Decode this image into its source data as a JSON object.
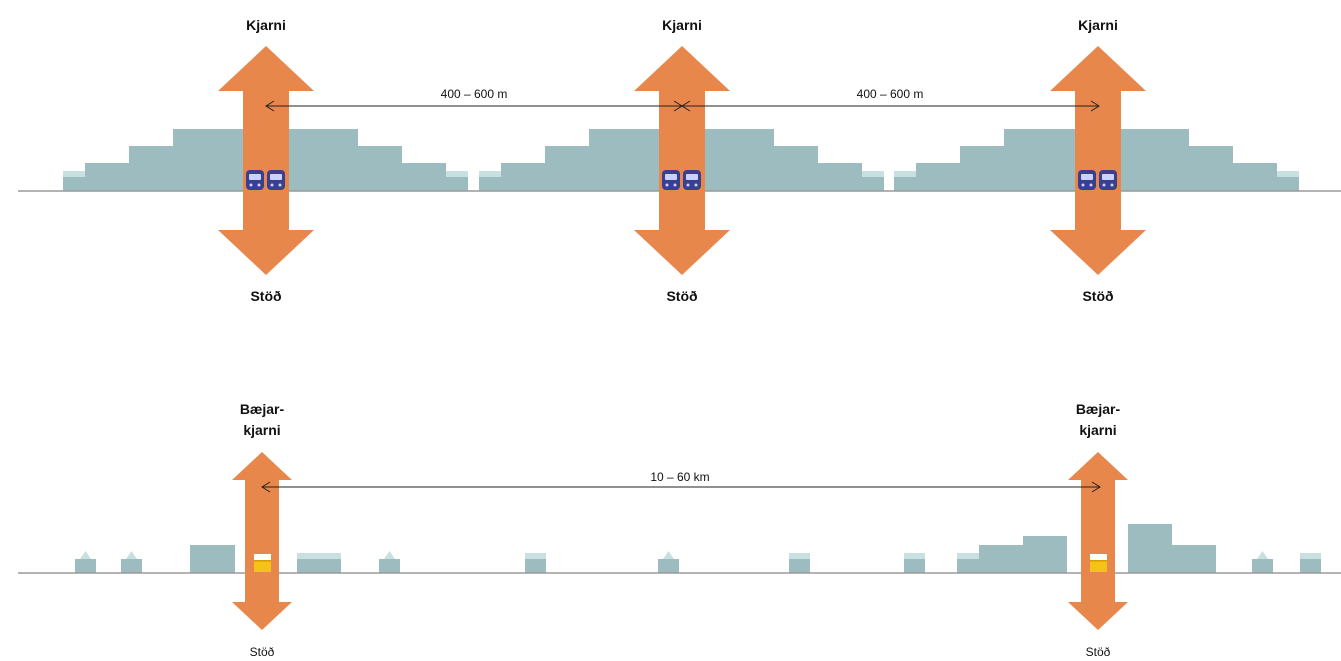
{
  "colors": {
    "arrow": "#e8874b",
    "building": "#9dbcbf",
    "building_light": "#c9e0e0",
    "ground": "#9a9a9a",
    "train": "#3a3f8f",
    "train_window": "#c9d3ff",
    "bus": "#f5c318",
    "bus_top": "#ffffff",
    "dim_line": "#222222"
  },
  "top": {
    "nodes": [
      {
        "top_label": "Kjarni",
        "bottom_label": "Stöð",
        "icon": "metro-train-icon"
      },
      {
        "top_label": "Kjarni",
        "bottom_label": "Stöð",
        "icon": "metro-train-icon"
      },
      {
        "top_label": "Kjarni",
        "bottom_label": "Stöð",
        "icon": "metro-train-icon"
      }
    ],
    "distances": [
      "400 – 600 m",
      "400 – 600 m"
    ]
  },
  "bottom": {
    "nodes": [
      {
        "top_label_1": "Bæjar-",
        "top_label_2": "kjarni",
        "bottom_label": "Stöð",
        "icon": "bus-icon"
      },
      {
        "top_label_1": "Bæjar-",
        "top_label_2": "kjarni",
        "bottom_label": "Stöð",
        "icon": "bus-icon"
      }
    ],
    "distance": "10 – 60 km"
  }
}
